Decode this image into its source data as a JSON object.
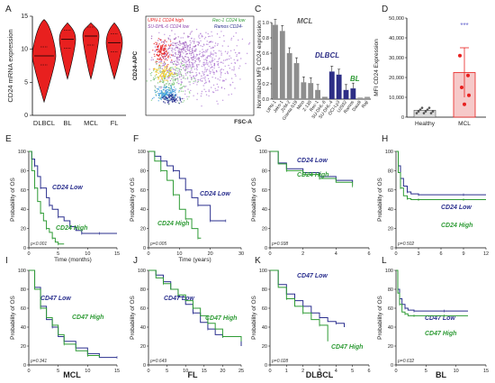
{
  "panel_letters": [
    "A",
    "B",
    "C",
    "D",
    "E",
    "F",
    "G",
    "H",
    "I",
    "J",
    "K",
    "L"
  ],
  "bottom_labels": [
    "MCL",
    "FL",
    "DLBCL",
    "BL"
  ],
  "colors": {
    "red": "#e8201f",
    "blue": "#2a2f8e",
    "green": "#2e9b35",
    "grey": "#8e8e8e",
    "darkgrey": "#5a5a5a",
    "navy": "#2d2e86",
    "pink": "#f6c9c9"
  },
  "chart_data": [
    {
      "panel": "A",
      "type": "violin",
      "ylabel": "CD24 mRNA expression",
      "ylim": [
        0,
        15
      ],
      "yticks": [
        0,
        5,
        10,
        15
      ],
      "categories": [
        "DLBCL",
        "BL",
        "MCL",
        "FL"
      ],
      "medians": [
        9,
        11.5,
        12,
        11
      ]
    },
    {
      "panel": "B",
      "type": "scatter",
      "xlabel": "FSC-A",
      "ylabel": "CD24-APC",
      "legend": [
        "UPN-1 CD24 high",
        "Rec-1 CD24 low",
        "SU-DHL-6 CD24 low",
        "Ramos CD24-"
      ]
    },
    {
      "panel": "C",
      "type": "bar",
      "ylabel": "Normalized MFI CD24 expression",
      "ylim": [
        0,
        1.0
      ],
      "yticks": [
        0.0,
        0.2,
        0.4,
        0.6,
        0.8,
        1.0
      ],
      "annotations": [
        "MCL",
        "DLBCL",
        "BL"
      ],
      "categories": [
        "UPN-1",
        "Jeko-1",
        "JVM-2",
        "Granta-519",
        "Mino",
        "Z-138",
        "Rec-1",
        "SU-DHL-6",
        "SU-DHL-4",
        "OCI-Ly3",
        "U2932",
        "Ramos",
        "Daudi",
        "Raji"
      ],
      "values": [
        0.97,
        0.89,
        0.6,
        0.47,
        0.22,
        0.21,
        0.12,
        0.03,
        0.36,
        0.32,
        0.12,
        0.14,
        0.02,
        0.03
      ],
      "groups": [
        "MCL",
        "MCL",
        "MCL",
        "MCL",
        "MCL",
        "MCL",
        "MCL",
        "MCL",
        "DLBCL",
        "DLBCL",
        "DLBCL",
        "DLBCL",
        "BL",
        "BL"
      ]
    },
    {
      "panel": "D",
      "type": "bar",
      "ylabel": "MFI CD24 Expression",
      "ylim": [
        0,
        50000
      ],
      "yticks": [
        "0",
        "10,000",
        "20,000",
        "30,000",
        "40,000",
        "50,000"
      ],
      "categories": [
        "Healthy",
        "MCL"
      ],
      "values": [
        3500,
        22500
      ],
      "significance": "***"
    },
    {
      "panel": "E",
      "type": "line",
      "xlabel": "Time (months)",
      "ylabel": "Probability of OS",
      "xticks": [
        0,
        5,
        10,
        15
      ],
      "yticks": [
        0,
        20,
        40,
        60,
        80,
        100
      ],
      "p": "p<0.001",
      "series": [
        {
          "name": "CD24 Low",
          "x": [
            0,
            0.5,
            1,
            1.5,
            2,
            3,
            3.5,
            4,
            5,
            6,
            7,
            8,
            9,
            10,
            12,
            15
          ],
          "y": [
            100,
            92,
            85,
            74,
            62,
            52,
            44,
            40,
            32,
            28,
            22,
            18,
            15,
            15,
            15,
            15
          ]
        },
        {
          "name": "CD24 High",
          "x": [
            0,
            0.5,
            1,
            1.5,
            2,
            2.5,
            3,
            3.5,
            4,
            4.5,
            5,
            6
          ],
          "y": [
            100,
            80,
            62,
            48,
            36,
            28,
            20,
            16,
            10,
            6,
            4,
            4
          ]
        }
      ]
    },
    {
      "panel": "F",
      "type": "line",
      "xlabel": "Time (years)",
      "ylabel": "Probability of OS",
      "xticks": [
        0,
        10,
        20,
        30
      ],
      "yticks": [
        0,
        20,
        40,
        60,
        80,
        100
      ],
      "p": "p=0.005",
      "series": [
        {
          "name": "CD24 Low",
          "x": [
            0,
            2,
            4,
            6,
            8,
            10,
            12,
            14,
            16,
            18,
            20,
            22,
            25
          ],
          "y": [
            100,
            95,
            90,
            85,
            80,
            72,
            60,
            52,
            44,
            44,
            28,
            28,
            28
          ]
        },
        {
          "name": "CD24 High",
          "x": [
            0,
            2,
            4,
            6,
            8,
            10,
            12,
            14,
            16,
            17
          ],
          "y": [
            100,
            90,
            80,
            70,
            55,
            40,
            30,
            20,
            10,
            10
          ]
        }
      ]
    },
    {
      "panel": "G",
      "type": "line",
      "xlabel": "",
      "ylabel": "Probability of OS",
      "xticks": [
        0,
        2,
        4,
        6
      ],
      "yticks": [
        0,
        20,
        40,
        60,
        80,
        100
      ],
      "p": "p=0.938",
      "series": [
        {
          "name": "CD24 Low",
          "x": [
            0,
            0.5,
            1,
            2,
            3,
            4,
            5
          ],
          "y": [
            100,
            88,
            82,
            78,
            74,
            70,
            68
          ]
        },
        {
          "name": "CD24 High",
          "x": [
            0,
            0.5,
            1,
            2,
            3,
            4,
            5
          ],
          "y": [
            100,
            87,
            80,
            76,
            72,
            68,
            64
          ]
        }
      ]
    },
    {
      "panel": "H",
      "type": "line",
      "xlabel": "",
      "ylabel": "Probability of OS",
      "xticks": [
        0,
        3,
        6,
        9,
        12
      ],
      "yticks": [
        0,
        20,
        40,
        60,
        80,
        100
      ],
      "p": "p=0.502",
      "series": [
        {
          "name": "CD24 Low",
          "x": [
            0,
            0.3,
            0.6,
            1,
            1.5,
            2,
            3,
            6,
            9,
            12
          ],
          "y": [
            100,
            85,
            72,
            64,
            58,
            56,
            55,
            55,
            55,
            55
          ]
        },
        {
          "name": "CD24 High",
          "x": [
            0,
            0.3,
            0.6,
            1,
            1.5,
            2,
            3,
            6,
            9,
            12
          ],
          "y": [
            100,
            78,
            62,
            54,
            51,
            50,
            50,
            50,
            50,
            50
          ]
        }
      ]
    },
    {
      "panel": "I",
      "type": "line",
      "xlabel": "",
      "ylabel": "Probability of OS",
      "xticks": [
        0,
        5,
        10,
        15
      ],
      "yticks": [
        0,
        20,
        40,
        60,
        80,
        100
      ],
      "p": "p=0.341",
      "series": [
        {
          "name": "CD47 Low",
          "x": [
            0,
            1,
            2,
            3,
            4,
            5,
            6,
            8,
            10,
            12,
            15
          ],
          "y": [
            100,
            82,
            62,
            48,
            40,
            30,
            25,
            18,
            12,
            8,
            8
          ]
        },
        {
          "name": "CD47 High",
          "x": [
            0,
            1,
            2,
            3,
            4,
            5,
            6,
            8,
            10,
            12
          ],
          "y": [
            100,
            80,
            60,
            50,
            42,
            32,
            22,
            15,
            10,
            8
          ]
        }
      ]
    },
    {
      "panel": "J",
      "type": "line",
      "xlabel": "",
      "ylabel": "Probability of OS",
      "xticks": [
        0,
        5,
        10,
        15,
        20,
        25
      ],
      "yticks": [
        0,
        20,
        40,
        60,
        80,
        100
      ],
      "p": "p=0.649",
      "series": [
        {
          "name": "CD47 Low",
          "x": [
            0,
            2,
            4,
            6,
            8,
            10,
            12,
            14,
            16,
            18,
            20,
            25
          ],
          "y": [
            100,
            95,
            88,
            80,
            72,
            64,
            55,
            45,
            38,
            32,
            30,
            20
          ]
        },
        {
          "name": "CD47 High",
          "x": [
            0,
            2,
            4,
            6,
            8,
            10,
            12,
            14,
            16,
            18,
            20,
            25
          ],
          "y": [
            100,
            92,
            86,
            80,
            74,
            68,
            60,
            52,
            44,
            38,
            30,
            25
          ]
        }
      ]
    },
    {
      "panel": "K",
      "type": "line",
      "xlabel": "",
      "ylabel": "Probability of OS",
      "xticks": [
        0,
        1,
        2,
        3,
        4,
        5,
        6
      ],
      "yticks": [
        0,
        20,
        40,
        60,
        80,
        100
      ],
      "p": "p=0.028",
      "series": [
        {
          "name": "CD47 Low",
          "x": [
            0,
            0.5,
            1,
            1.5,
            2,
            2.5,
            3,
            3.5,
            4,
            4.5
          ],
          "y": [
            100,
            85,
            75,
            68,
            62,
            55,
            50,
            46,
            44,
            40
          ]
        },
        {
          "name": "CD47 High",
          "x": [
            0,
            0.5,
            1,
            1.5,
            2,
            2.5,
            3,
            3.5
          ],
          "y": [
            100,
            82,
            70,
            62,
            55,
            48,
            42,
            25
          ]
        }
      ]
    },
    {
      "panel": "L",
      "type": "line",
      "xlabel": "",
      "ylabel": "Probability of OS",
      "xticks": [
        0,
        5,
        10,
        15
      ],
      "yticks": [
        0,
        20,
        40,
        60,
        80,
        100
      ],
      "p": "p=0.632",
      "series": [
        {
          "name": "CD47 Low",
          "x": [
            0,
            0.3,
            0.6,
            1,
            1.5,
            2,
            3,
            5,
            8,
            12
          ],
          "y": [
            100,
            80,
            70,
            64,
            60,
            58,
            57,
            57,
            57,
            57
          ]
        },
        {
          "name": "CD47 High",
          "x": [
            0,
            0.3,
            0.6,
            1,
            1.5,
            2,
            3,
            5,
            8,
            12
          ],
          "y": [
            100,
            76,
            64,
            56,
            54,
            52,
            52,
            52,
            52,
            52
          ]
        }
      ]
    }
  ]
}
